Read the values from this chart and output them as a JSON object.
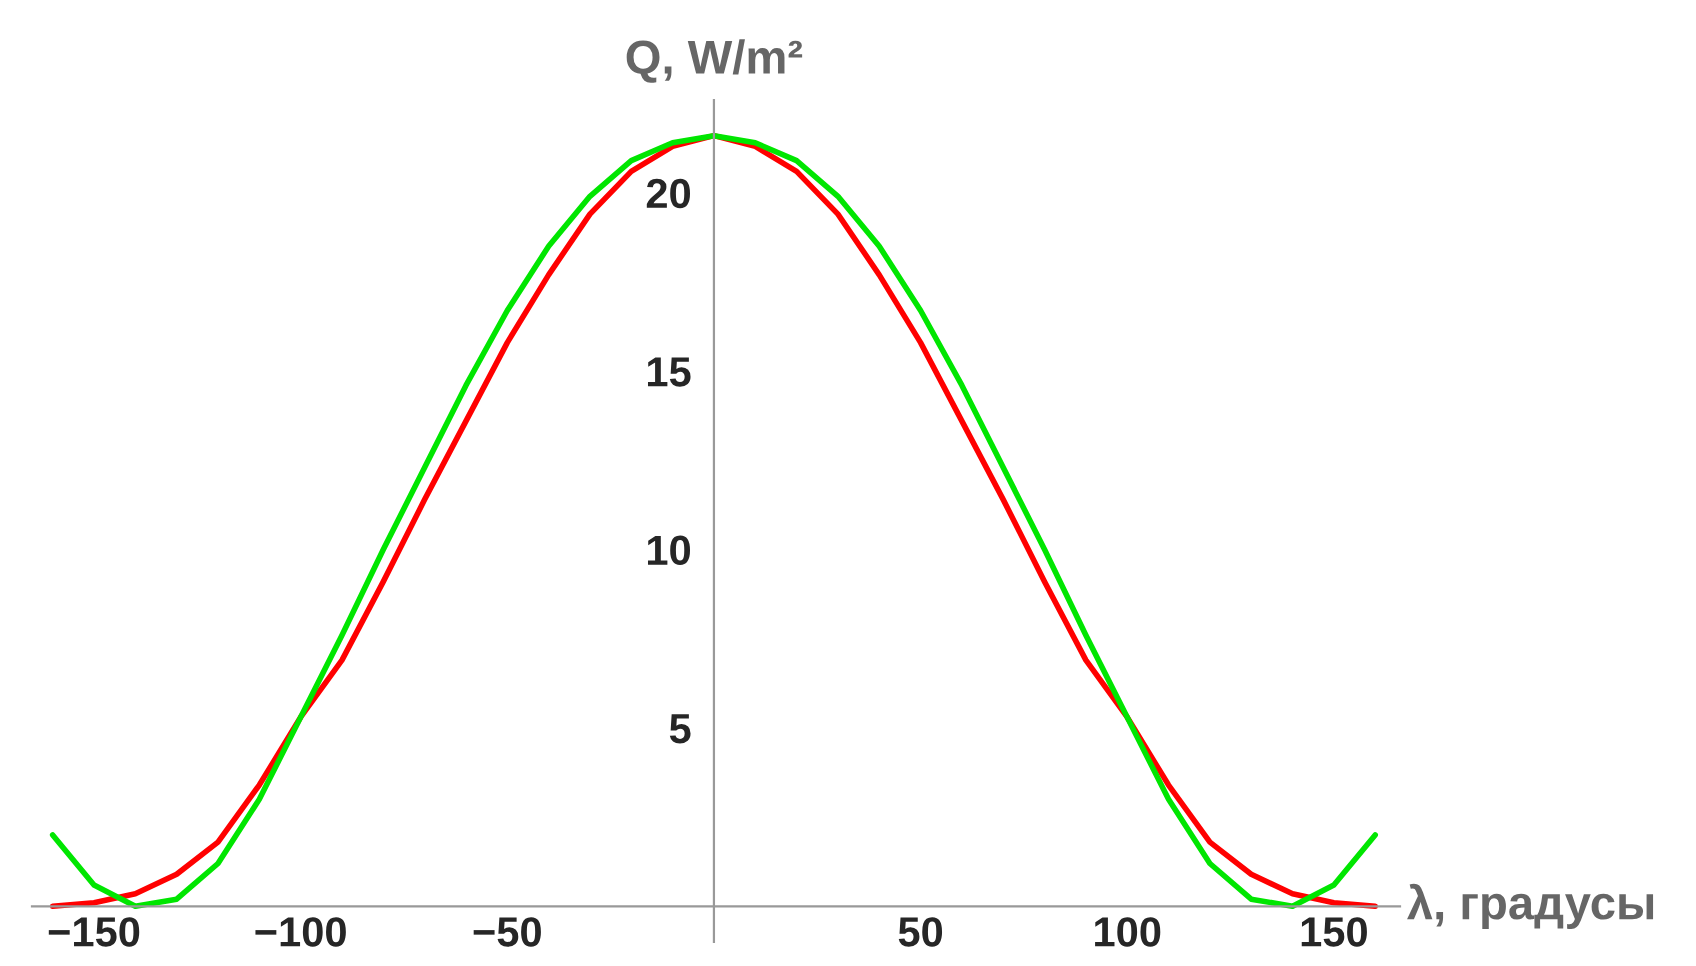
{
  "chart_data": {
    "type": "line",
    "xlabel": "λ, градусы",
    "ylabel": "Q, W/m²",
    "x": [
      -160,
      -150,
      -140,
      -130,
      -120,
      -110,
      -100,
      -90,
      -80,
      -70,
      -60,
      -50,
      -40,
      -30,
      -20,
      -10,
      0,
      10,
      20,
      30,
      40,
      50,
      60,
      70,
      80,
      90,
      100,
      110,
      120,
      130,
      140,
      150,
      160
    ],
    "series": [
      {
        "color": "#ff0000",
        "values": [
          0.0,
          0.1,
          0.35,
          0.9,
          1.8,
          3.4,
          5.3,
          6.9,
          9.1,
          11.4,
          13.6,
          15.8,
          17.7,
          19.4,
          20.6,
          21.3,
          21.6,
          21.3,
          20.6,
          19.4,
          17.7,
          15.8,
          13.6,
          11.4,
          9.1,
          6.9,
          5.3,
          3.4,
          1.8,
          0.9,
          0.35,
          0.1,
          0.0
        ]
      },
      {
        "color": "#00e600",
        "values": [
          2.0,
          0.6,
          0.0,
          0.2,
          1.2,
          3.0,
          5.3,
          7.6,
          10.0,
          12.3,
          14.6,
          16.7,
          18.5,
          19.9,
          20.9,
          21.4,
          21.6,
          21.4,
          20.9,
          19.9,
          18.5,
          16.7,
          14.6,
          12.3,
          10.0,
          7.6,
          5.3,
          3.0,
          1.2,
          0.2,
          0.0,
          0.6,
          2.0
        ]
      }
    ],
    "xlim": [
      -165,
      166
    ],
    "ylim": [
      -1,
      22.6
    ],
    "xticks": [
      -150,
      -100,
      -50,
      50,
      100,
      150
    ],
    "yticks": [
      5,
      10,
      15,
      20
    ],
    "grid": false,
    "legend": false,
    "marker": "none",
    "line_style": "solid"
  }
}
